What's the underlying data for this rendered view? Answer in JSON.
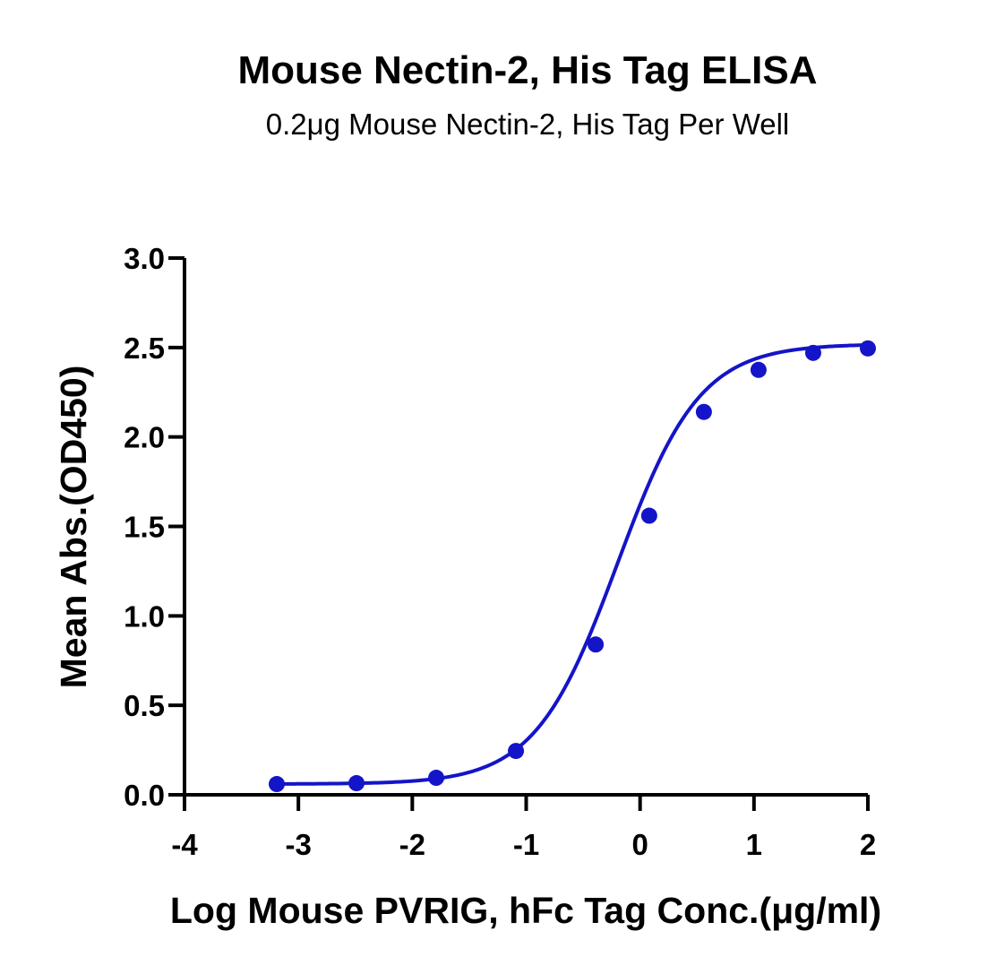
{
  "chart_data": {
    "type": "scatter",
    "title": "Mouse Nectin-2, His Tag ELISA",
    "subtitle": "0.2μg Mouse Nectin-2, His Tag Per Well",
    "xlabel": "Log Mouse PVRIG, hFc Tag Conc.(μg/ml)",
    "ylabel": "Mean Abs.(OD450)",
    "xlim": [
      -4,
      2
    ],
    "ylim": [
      0,
      3.0
    ],
    "x_ticks": [
      -4,
      -3,
      -2,
      -1,
      0,
      1,
      2
    ],
    "x_tick_labels": [
      "-4",
      "-3",
      "-2",
      "-1",
      "0",
      "1",
      "2"
    ],
    "y_ticks": [
      0,
      0.5,
      1.0,
      1.5,
      2.0,
      2.5,
      3.0
    ],
    "y_tick_labels": [
      "0.0",
      "0.5",
      "1.0",
      "1.5",
      "2.0",
      "2.5",
      "3.0"
    ],
    "grid": false,
    "legend": "none",
    "series_color": "#1414c8",
    "series": [
      {
        "x": [
          -3.19,
          -2.49,
          -1.79,
          -1.09,
          -0.39,
          0.08,
          0.56,
          1.04,
          1.52,
          2.0
        ],
        "values": [
          0.06,
          0.065,
          0.095,
          0.245,
          0.84,
          1.56,
          2.14,
          2.375,
          2.47,
          2.495
        ]
      }
    ],
    "fit_curve": {
      "model": "four-parameter logistic",
      "bottom": 0.06,
      "top": 2.52,
      "log_ec50": -0.2,
      "hill_slope": 1.2
    }
  }
}
